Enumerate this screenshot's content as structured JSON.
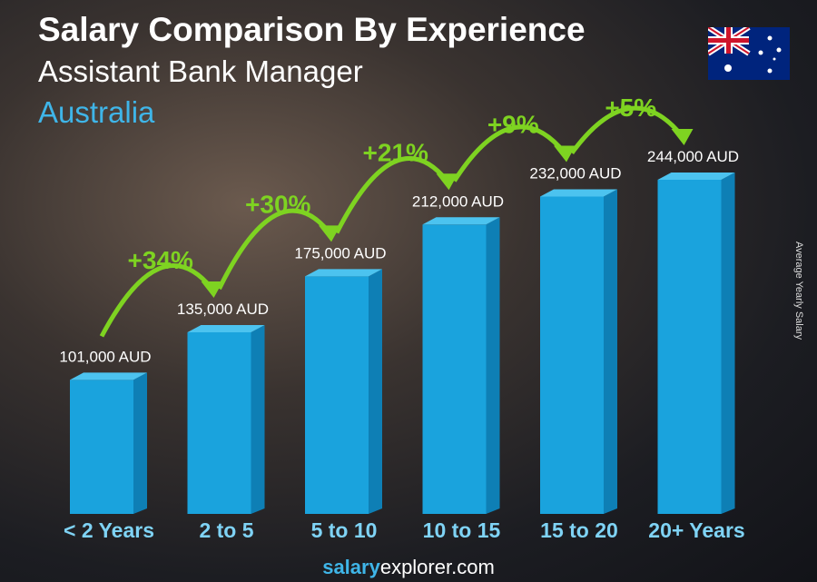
{
  "header": {
    "title": "Salary Comparison By Experience",
    "subtitle": "Assistant Bank Manager",
    "country": "Australia"
  },
  "footer": {
    "brand_bold": "salary",
    "brand_rest": "explorer",
    "brand_tld": ".com"
  },
  "chart_data": {
    "type": "bar",
    "categories": [
      "< 2 Years",
      "2 to 5",
      "5 to 10",
      "10 to 15",
      "15 to 20",
      "20+ Years"
    ],
    "values": [
      101000,
      135000,
      175000,
      212000,
      232000,
      244000
    ],
    "value_labels": [
      "101,000 AUD",
      "135,000 AUD",
      "175,000 AUD",
      "212,000 AUD",
      "232,000 AUD",
      "244,000 AUD"
    ],
    "increase_labels": [
      "+34%",
      "+30%",
      "+21%",
      "+9%",
      "+5%"
    ],
    "ylabel": "Average Yearly Salary",
    "unit": "AUD",
    "colors": {
      "bar": "#1aa3dd",
      "bar_side": "#0e7fb5",
      "bar_top": "#4cc3ef",
      "increase": "#7ed321",
      "label": "#ffffff",
      "category": "#7fd3f5"
    }
  }
}
